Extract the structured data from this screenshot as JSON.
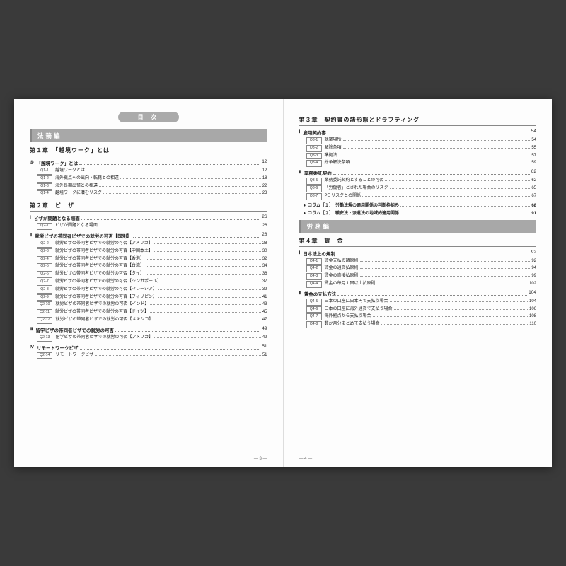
{
  "toc_title": "目 次",
  "left": {
    "part": "法務編",
    "ch1": {
      "title": "第１章　「越境ワーク」とは",
      "sec1": {
        "bullet": "◎",
        "label": "「越境ワーク」とは",
        "page": "12"
      },
      "rows": [
        {
          "q": "Q1-1",
          "t": "越境ワークとは",
          "p": "12"
        },
        {
          "q": "Q1-2",
          "t": "海外拠点への出向・転籍との相違",
          "p": "18"
        },
        {
          "q": "Q1-3",
          "t": "海外長期出張との相違",
          "p": "22"
        },
        {
          "q": "Q1-4",
          "t": "越境ワークに潜むリスク",
          "p": "23"
        }
      ]
    },
    "ch2": {
      "title": "第２章　ビ　ザ",
      "sec1": {
        "bullet": "Ⅰ",
        "label": "ビザが問題となる場面",
        "page": "26"
      },
      "row1": {
        "q": "Q2-1",
        "t": "ビザが問題となる場面",
        "p": "26"
      },
      "sec2": {
        "bullet": "Ⅱ",
        "label": "就労ビザの帯同者ビザでの就労の可否【国別】",
        "page": "28"
      },
      "rows2": [
        {
          "q": "Q2-2",
          "t": "就労ビザの帯同者ビザでの就労の可否【アメリカ】",
          "p": "28"
        },
        {
          "q": "Q2-3",
          "t": "就労ビザの帯同者ビザでの就労の可否【中国本土】",
          "p": "30"
        },
        {
          "q": "Q2-4",
          "t": "就労ビザの帯同者ビザでの就労の可否【香港】",
          "p": "32"
        },
        {
          "q": "Q2-5",
          "t": "就労ビザの帯同者ビザでの就労の可否【台湾】",
          "p": "34"
        },
        {
          "q": "Q2-6",
          "t": "就労ビザの帯同者ビザでの就労の可否【タイ】",
          "p": "36"
        },
        {
          "q": "Q2-7",
          "t": "就労ビザの帯同者ビザでの就労の可否【シンガポール】",
          "p": "37"
        },
        {
          "q": "Q2-8",
          "t": "就労ビザの帯同者ビザでの就労の可否【マレーシア】",
          "p": "39"
        },
        {
          "q": "Q2-9",
          "t": "就労ビザの帯同者ビザでの就労の可否【フィリピン】",
          "p": "41"
        },
        {
          "q": "Q2-10",
          "t": "就労ビザの帯同者ビザでの就労の可否【インド】",
          "p": "43"
        },
        {
          "q": "Q2-11",
          "t": "就労ビザの帯同者ビザでの就労の可否【ドイツ】",
          "p": "45"
        },
        {
          "q": "Q2-12",
          "t": "就労ビザの帯同者ビザでの就労の可否【メキシコ】",
          "p": "47"
        }
      ],
      "sec3": {
        "bullet": "Ⅲ",
        "label": "留学ビザの帯同者ビザでの就労の可否",
        "page": "49"
      },
      "row3": {
        "q": "Q2-13",
        "t": "留学ビザの帯同者ビザでの就労の可否【アメリカ】",
        "p": "49"
      },
      "sec4": {
        "bullet": "Ⅳ",
        "label": "リモートワークビザ",
        "page": "51"
      },
      "row4": {
        "q": "Q2-14",
        "t": "リモートワークビザ",
        "p": "51"
      }
    },
    "pagenum": "3"
  },
  "right": {
    "ch3": {
      "title": "第３章　契約書の諸形態とドラフティング",
      "sec1": {
        "bullet": "Ⅰ",
        "label": "雇用契約書",
        "page": "54"
      },
      "rows1": [
        {
          "q": "Q3-1",
          "t": "就業場所",
          "p": "54"
        },
        {
          "q": "Q3-2",
          "t": "解除条項",
          "p": "55"
        },
        {
          "q": "Q3-3",
          "t": "準拠法",
          "p": "57"
        },
        {
          "q": "Q3-4",
          "t": "紛争解決条項",
          "p": "59"
        }
      ],
      "sec2": {
        "bullet": "Ⅱ",
        "label": "業務委託契約",
        "page": "62"
      },
      "rows2": [
        {
          "q": "Q3-5",
          "t": "業務委託契約とすることの可否",
          "p": "62"
        },
        {
          "q": "Q3-6",
          "t": "「労働者」とされた場合のリスク",
          "p": "65"
        },
        {
          "q": "Q3-7",
          "t": "PE リスクとの関係",
          "p": "67"
        }
      ],
      "cols": [
        {
          "label": "コラム［１］　労働法規の適用関係の判断枠組み",
          "p": "68"
        },
        {
          "label": "コラム［２］　職安法・派遣法の地域的適用関係",
          "p": "91"
        }
      ]
    },
    "part": "労務編",
    "ch4": {
      "title": "第４章　賃　金",
      "sec1": {
        "bullet": "Ⅰ",
        "label": "日本法上の規制",
        "page": "92"
      },
      "rows1": [
        {
          "q": "Q4-1",
          "t": "賃金支払の諸原則",
          "p": "92"
        },
        {
          "q": "Q4-2",
          "t": "賃金の通貨払原則",
          "p": "94"
        },
        {
          "q": "Q4-3",
          "t": "賃金の直接払原則",
          "p": "99"
        },
        {
          "q": "Q4-4",
          "t": "賃金の毎月１回以上払原則",
          "p": "102"
        }
      ],
      "sec2": {
        "bullet": "Ⅱ",
        "label": "賃金の支払方法",
        "page": "104"
      },
      "rows2": [
        {
          "q": "Q4-5",
          "t": "日本の口座に日本円で支払う場合",
          "p": "104"
        },
        {
          "q": "Q4-6",
          "t": "日本の口座に海外通貨で支払う場合",
          "p": "106"
        },
        {
          "q": "Q4-7",
          "t": "海外拠点から支払う場合",
          "p": "108"
        },
        {
          "q": "Q4-8",
          "t": "数か月分まとめて支払う場合",
          "p": "110"
        }
      ]
    },
    "pagenum": "4"
  }
}
